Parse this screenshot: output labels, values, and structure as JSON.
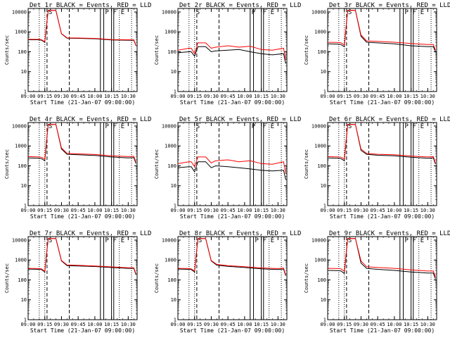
{
  "colors": {
    "background": "#ffffff",
    "axes": "#000000",
    "events": "#000000",
    "lld": "#ff0000"
  },
  "common": {
    "x_ticks": [
      "09:00",
      "09:15",
      "09:30",
      "09:45",
      "10:00",
      "10:15",
      "10:30"
    ],
    "x_label": "Start Time (21-Jan-07 09:00:00)",
    "y_ticks": [
      "1",
      "10",
      "100",
      "1000",
      "10000"
    ],
    "y_label": "Counts/sec",
    "marker_key": "Vertical lines: dotted, dashed, solid; letters S, P, F, E at top"
  },
  "chart_data": [
    {
      "type": "line",
      "title": "Det 1r BLACK = Events, RED = LLD",
      "xlim": [
        "09:00",
        "10:38"
      ],
      "ylim": [
        1,
        15000
      ],
      "y_scale": "log",
      "grid": false,
      "x": [
        "09:00",
        "09:10",
        "09:12",
        "09:15",
        "09:18",
        "09:21",
        "09:25",
        "09:30",
        "09:35",
        "09:45",
        "10:00",
        "10:15",
        "10:30",
        "10:35",
        "10:37"
      ],
      "series": [
        {
          "name": "Events",
          "values": [
            400,
            400,
            380,
            300,
            12000,
            12000,
            12000,
            800,
            480,
            470,
            450,
            390,
            380,
            380,
            200
          ]
        },
        {
          "name": "LLD",
          "values": [
            420,
            420,
            400,
            320,
            12000,
            12000,
            12000,
            820,
            500,
            490,
            470,
            410,
            400,
            400,
            210
          ]
        }
      ],
      "markers": [
        {
          "time": "09:10",
          "style": "dotted"
        },
        {
          "time": "09:15",
          "style": "dotted"
        },
        {
          "time": "09:17",
          "style": "dashed",
          "label": "S"
        },
        {
          "time": "09:37",
          "style": "dashed"
        },
        {
          "time": "10:05",
          "style": "solid"
        },
        {
          "time": "10:08",
          "style": "solid",
          "label": "P"
        },
        {
          "time": "10:15",
          "style": "solid",
          "label": "F"
        },
        {
          "time": "10:17",
          "style": "solid"
        },
        {
          "time": "10:22",
          "style": "dotted",
          "label": "E"
        },
        {
          "time": "10:33",
          "style": "dotted"
        }
      ]
    },
    {
      "type": "line",
      "title": "Det 2r BLACK = Events, RED = LLD",
      "xlim": [
        "09:00",
        "10:38"
      ],
      "ylim": [
        1,
        15000
      ],
      "y_scale": "log",
      "grid": false,
      "x": [
        "09:00",
        "09:10",
        "09:12",
        "09:15",
        "09:18",
        "09:21",
        "09:25",
        "09:30",
        "09:34",
        "09:45",
        "09:55",
        "10:05",
        "10:15",
        "10:25",
        "10:35",
        "10:37"
      ],
      "series": [
        {
          "name": "Events",
          "values": [
            90,
            100,
            100,
            60,
            180,
            180,
            180,
            100,
            110,
            120,
            130,
            100,
            80,
            70,
            80,
            25
          ]
        },
        {
          "name": "LLD",
          "values": [
            120,
            150,
            150,
            80,
            280,
            280,
            280,
            150,
            170,
            200,
            170,
            190,
            130,
            120,
            150,
            40
          ]
        }
      ],
      "markers": [
        {
          "time": "09:10",
          "style": "dotted"
        },
        {
          "time": "09:15",
          "style": "dotted",
          "label": "S"
        },
        {
          "time": "09:17",
          "style": "dashed"
        },
        {
          "time": "09:37",
          "style": "dashed"
        },
        {
          "time": "10:05",
          "style": "solid",
          "label": "P"
        },
        {
          "time": "10:08",
          "style": "solid"
        },
        {
          "time": "10:15",
          "style": "solid",
          "label": "F"
        },
        {
          "time": "10:17",
          "style": "solid"
        },
        {
          "time": "10:22",
          "style": "dotted",
          "label": "E"
        },
        {
          "time": "10:33",
          "style": "dotted"
        }
      ]
    },
    {
      "type": "line",
      "title": "Det 3r BLACK = Events, RED = LLD",
      "xlim": [
        "09:00",
        "10:38"
      ],
      "ylim": [
        1,
        15000
      ],
      "y_scale": "log",
      "grid": false,
      "x": [
        "09:00",
        "09:10",
        "09:12",
        "09:15",
        "09:18",
        "09:21",
        "09:25",
        "09:30",
        "09:35",
        "09:45",
        "10:00",
        "10:15",
        "10:30",
        "10:35",
        "10:37"
      ],
      "series": [
        {
          "name": "Events",
          "values": [
            250,
            240,
            230,
            180,
            12000,
            12000,
            12000,
            600,
            300,
            280,
            250,
            200,
            180,
            180,
            100
          ]
        },
        {
          "name": "LLD",
          "values": [
            300,
            290,
            280,
            220,
            12000,
            12000,
            12000,
            700,
            350,
            330,
            300,
            260,
            230,
            230,
            120
          ]
        }
      ],
      "markers": [
        {
          "time": "09:10",
          "style": "dotted"
        },
        {
          "time": "09:15",
          "style": "dotted"
        },
        {
          "time": "09:17",
          "style": "dashed",
          "label": "S"
        },
        {
          "time": "09:37",
          "style": "dashed"
        },
        {
          "time": "10:05",
          "style": "solid"
        },
        {
          "time": "10:08",
          "style": "solid",
          "label": "P"
        },
        {
          "time": "10:15",
          "style": "solid",
          "label": "F"
        },
        {
          "time": "10:17",
          "style": "solid"
        },
        {
          "time": "10:22",
          "style": "dotted",
          "label": "E"
        },
        {
          "time": "10:33",
          "style": "dotted"
        }
      ]
    },
    {
      "type": "line",
      "title": "Det 4r BLACK = Events, RED = LLD",
      "xlim": [
        "09:00",
        "10:38"
      ],
      "ylim": [
        1,
        15000
      ],
      "y_scale": "log",
      "grid": false,
      "x": [
        "09:00",
        "09:10",
        "09:12",
        "09:15",
        "09:18",
        "09:21",
        "09:25",
        "09:30",
        "09:35",
        "09:45",
        "10:00",
        "10:15",
        "10:30",
        "10:35",
        "10:37"
      ],
      "series": [
        {
          "name": "Events",
          "values": [
            250,
            240,
            230,
            180,
            12000,
            12000,
            12000,
            700,
            380,
            360,
            330,
            280,
            250,
            260,
            130
          ]
        },
        {
          "name": "LLD",
          "values": [
            290,
            280,
            270,
            220,
            12000,
            12000,
            12000,
            800,
            420,
            400,
            370,
            320,
            290,
            300,
            150
          ]
        }
      ],
      "markers": [
        {
          "time": "09:10",
          "style": "dotted"
        },
        {
          "time": "09:15",
          "style": "dotted"
        },
        {
          "time": "09:17",
          "style": "dashed",
          "label": "S"
        },
        {
          "time": "09:37",
          "style": "dashed"
        },
        {
          "time": "10:05",
          "style": "solid"
        },
        {
          "time": "10:08",
          "style": "solid",
          "label": "P"
        },
        {
          "time": "10:15",
          "style": "solid",
          "label": "F"
        },
        {
          "time": "10:17",
          "style": "solid"
        },
        {
          "time": "10:22",
          "style": "dotted",
          "label": "E"
        },
        {
          "time": "10:33",
          "style": "dotted"
        }
      ]
    },
    {
      "type": "line",
      "title": "Det 5r BLACK = Events, RED = LLD",
      "xlim": [
        "09:00",
        "10:38"
      ],
      "ylim": [
        1,
        15000
      ],
      "y_scale": "log",
      "grid": false,
      "x": [
        "09:00",
        "09:10",
        "09:12",
        "09:15",
        "09:18",
        "09:21",
        "09:25",
        "09:30",
        "09:34",
        "09:45",
        "09:55",
        "10:05",
        "10:15",
        "10:25",
        "10:35",
        "10:37"
      ],
      "series": [
        {
          "name": "Events",
          "values": [
            80,
            90,
            90,
            50,
            160,
            160,
            160,
            80,
            100,
            90,
            80,
            70,
            60,
            55,
            60,
            20
          ]
        },
        {
          "name": "LLD",
          "values": [
            130,
            160,
            160,
            90,
            280,
            280,
            280,
            140,
            180,
            200,
            160,
            180,
            130,
            120,
            160,
            40
          ]
        }
      ],
      "markers": [
        {
          "time": "09:10",
          "style": "dotted"
        },
        {
          "time": "09:15",
          "style": "dotted",
          "label": "S"
        },
        {
          "time": "09:17",
          "style": "dashed"
        },
        {
          "time": "09:37",
          "style": "dashed"
        },
        {
          "time": "10:05",
          "style": "solid",
          "label": "P"
        },
        {
          "time": "10:08",
          "style": "solid"
        },
        {
          "time": "10:15",
          "style": "solid",
          "label": "F"
        },
        {
          "time": "10:17",
          "style": "solid"
        },
        {
          "time": "10:22",
          "style": "dotted",
          "label": "E"
        },
        {
          "time": "10:33",
          "style": "dotted"
        }
      ]
    },
    {
      "type": "line",
      "title": "Det 6r BLACK = Events, RED = LLD",
      "xlim": [
        "09:00",
        "10:38"
      ],
      "ylim": [
        1,
        15000
      ],
      "y_scale": "log",
      "grid": false,
      "x": [
        "09:00",
        "09:10",
        "09:12",
        "09:15",
        "09:18",
        "09:21",
        "09:25",
        "09:30",
        "09:35",
        "09:45",
        "10:00",
        "10:15",
        "10:30",
        "10:35",
        "10:37"
      ],
      "series": [
        {
          "name": "Events",
          "values": [
            250,
            240,
            230,
            180,
            12000,
            12000,
            12000,
            600,
            380,
            340,
            320,
            270,
            240,
            250,
            120
          ]
        },
        {
          "name": "LLD",
          "values": [
            290,
            280,
            270,
            220,
            12000,
            12000,
            12000,
            700,
            420,
            380,
            360,
            310,
            280,
            290,
            140
          ]
        }
      ],
      "markers": [
        {
          "time": "09:10",
          "style": "dotted"
        },
        {
          "time": "09:15",
          "style": "dotted"
        },
        {
          "time": "09:17",
          "style": "dashed",
          "label": "S"
        },
        {
          "time": "09:37",
          "style": "dashed"
        },
        {
          "time": "10:05",
          "style": "solid"
        },
        {
          "time": "10:08",
          "style": "solid",
          "label": "P"
        },
        {
          "time": "10:15",
          "style": "solid",
          "label": "F"
        },
        {
          "time": "10:17",
          "style": "solid"
        },
        {
          "time": "10:22",
          "style": "dotted",
          "label": "E"
        },
        {
          "time": "10:33",
          "style": "dotted"
        }
      ]
    },
    {
      "type": "line",
      "title": "Det 7r BLACK = Events, RED = LLD",
      "xlim": [
        "09:00",
        "10:38"
      ],
      "ylim": [
        1,
        15000
      ],
      "y_scale": "log",
      "grid": false,
      "x": [
        "09:00",
        "09:10",
        "09:12",
        "09:15",
        "09:18",
        "09:21",
        "09:25",
        "09:30",
        "09:35",
        "09:45",
        "10:00",
        "10:15",
        "10:30",
        "10:35",
        "10:37"
      ],
      "series": [
        {
          "name": "Events",
          "values": [
            350,
            340,
            330,
            250,
            12000,
            12000,
            12000,
            900,
            520,
            500,
            470,
            420,
            380,
            380,
            180
          ]
        },
        {
          "name": "LLD",
          "values": [
            380,
            370,
            360,
            270,
            12000,
            12000,
            12000,
            950,
            560,
            540,
            500,
            450,
            410,
            410,
            200
          ]
        }
      ],
      "markers": [
        {
          "time": "09:10",
          "style": "dotted"
        },
        {
          "time": "09:15",
          "style": "dotted"
        },
        {
          "time": "09:17",
          "style": "dashed",
          "label": "S"
        },
        {
          "time": "09:37",
          "style": "dashed"
        },
        {
          "time": "10:05",
          "style": "solid"
        },
        {
          "time": "10:08",
          "style": "solid",
          "label": "P"
        },
        {
          "time": "10:15",
          "style": "solid",
          "label": "F"
        },
        {
          "time": "10:17",
          "style": "solid"
        },
        {
          "time": "10:22",
          "style": "dotted",
          "label": "E"
        },
        {
          "time": "10:33",
          "style": "dotted"
        }
      ]
    },
    {
      "type": "line",
      "title": "Det 8r BLACK = Events, RED = LLD",
      "xlim": [
        "09:00",
        "10:38"
      ],
      "ylim": [
        1,
        15000
      ],
      "y_scale": "log",
      "grid": false,
      "x": [
        "09:00",
        "09:10",
        "09:12",
        "09:15",
        "09:18",
        "09:21",
        "09:25",
        "09:30",
        "09:35",
        "09:45",
        "10:00",
        "10:15",
        "10:30",
        "10:35",
        "10:37"
      ],
      "series": [
        {
          "name": "Events",
          "values": [
            350,
            340,
            330,
            250,
            12000,
            12000,
            12000,
            900,
            550,
            480,
            420,
            360,
            330,
            350,
            160
          ]
        },
        {
          "name": "LLD",
          "values": [
            380,
            370,
            360,
            280,
            12000,
            12000,
            12000,
            950,
            600,
            520,
            460,
            400,
            370,
            390,
            180
          ]
        }
      ],
      "markers": [
        {
          "time": "09:10",
          "style": "dotted"
        },
        {
          "time": "09:15",
          "style": "dotted"
        },
        {
          "time": "09:17",
          "style": "dashed",
          "label": "S"
        },
        {
          "time": "09:37",
          "style": "dashed"
        },
        {
          "time": "10:05",
          "style": "solid"
        },
        {
          "time": "10:08",
          "style": "solid",
          "label": "P"
        },
        {
          "time": "10:15",
          "style": "solid",
          "label": "F"
        },
        {
          "time": "10:17",
          "style": "solid"
        },
        {
          "time": "10:22",
          "style": "dotted",
          "label": "E"
        },
        {
          "time": "10:33",
          "style": "dotted"
        }
      ]
    },
    {
      "type": "line",
      "title": "Det 9r BLACK = Events, RED = LLD",
      "xlim": [
        "09:00",
        "10:38"
      ],
      "ylim": [
        1,
        15000
      ],
      "y_scale": "log",
      "grid": false,
      "x": [
        "09:00",
        "09:10",
        "09:12",
        "09:15",
        "09:18",
        "09:21",
        "09:25",
        "09:30",
        "09:35",
        "09:45",
        "10:00",
        "10:15",
        "10:30",
        "10:35",
        "10:37"
      ],
      "series": [
        {
          "name": "Events",
          "values": [
            300,
            290,
            280,
            210,
            12000,
            12000,
            12000,
            700,
            380,
            340,
            300,
            250,
            220,
            220,
            110
          ]
        },
        {
          "name": "LLD",
          "values": [
            380,
            370,
            360,
            270,
            12000,
            12000,
            12000,
            900,
            460,
            420,
            380,
            320,
            280,
            280,
            140
          ]
        }
      ],
      "markers": [
        {
          "time": "09:10",
          "style": "dotted"
        },
        {
          "time": "09:15",
          "style": "dotted"
        },
        {
          "time": "09:17",
          "style": "dashed",
          "label": "S"
        },
        {
          "time": "09:37",
          "style": "dashed"
        },
        {
          "time": "10:05",
          "style": "solid"
        },
        {
          "time": "10:08",
          "style": "solid",
          "label": "P"
        },
        {
          "time": "10:15",
          "style": "solid",
          "label": "F"
        },
        {
          "time": "10:17",
          "style": "solid"
        },
        {
          "time": "10:22",
          "style": "dotted",
          "label": "E"
        },
        {
          "time": "10:33",
          "style": "dotted"
        }
      ]
    }
  ]
}
